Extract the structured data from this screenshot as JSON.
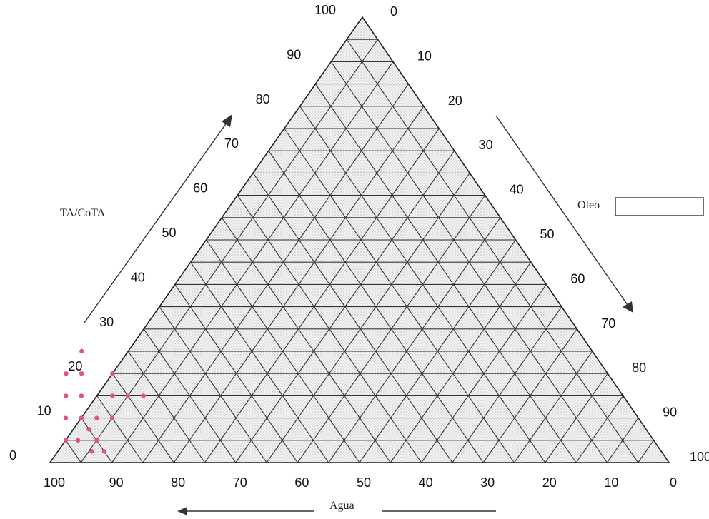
{
  "chart_data": {
    "type": "scatter",
    "subtype": "ternary",
    "grid": true,
    "grid_step": 5,
    "axes": {
      "left": {
        "label": "TA/CoTA",
        "ticks": [
          "0",
          "10",
          "20",
          "30",
          "40",
          "50",
          "60",
          "70",
          "80",
          "90",
          "100"
        ]
      },
      "right": {
        "label": "Oleo",
        "ticks": [
          "0",
          "10",
          "20",
          "30",
          "40",
          "50",
          "60",
          "70",
          "80",
          "90",
          "100"
        ]
      },
      "bottom": {
        "label": "Agua",
        "ticks": [
          "100",
          "90",
          "80",
          "70",
          "60",
          "50",
          "40",
          "30",
          "20",
          "10",
          "0"
        ]
      }
    },
    "points_color": "#e0508f",
    "points": [
      {
        "agua": 95,
        "tacota": 5
      },
      {
        "agua": 93,
        "tacota": 5
      },
      {
        "agua": 92,
        "tacota": 2.5
      },
      {
        "agua": 92.5,
        "tacota": 10
      },
      {
        "agua": 90,
        "tacota": 10
      },
      {
        "agua": 90,
        "tacota": 7.5
      },
      {
        "agua": 90,
        "tacota": 5
      },
      {
        "agua": 90,
        "tacota": 2.5
      },
      {
        "agua": 87.5,
        "tacota": 10
      },
      {
        "agua": 85,
        "tacota": 10
      },
      {
        "agua": 90,
        "tacota": 15
      },
      {
        "agua": 87.5,
        "tacota": 15
      },
      {
        "agua": 85,
        "tacota": 20
      },
      {
        "agua": 82.5,
        "tacota": 15
      },
      {
        "agua": 80,
        "tacota": 15
      },
      {
        "agua": 77.5,
        "tacota": 15
      },
      {
        "agua": 87.5,
        "tacota": 20
      },
      {
        "agua": 82.5,
        "tacota": 25
      },
      {
        "agua": 80,
        "tacota": 20
      }
    ]
  }
}
